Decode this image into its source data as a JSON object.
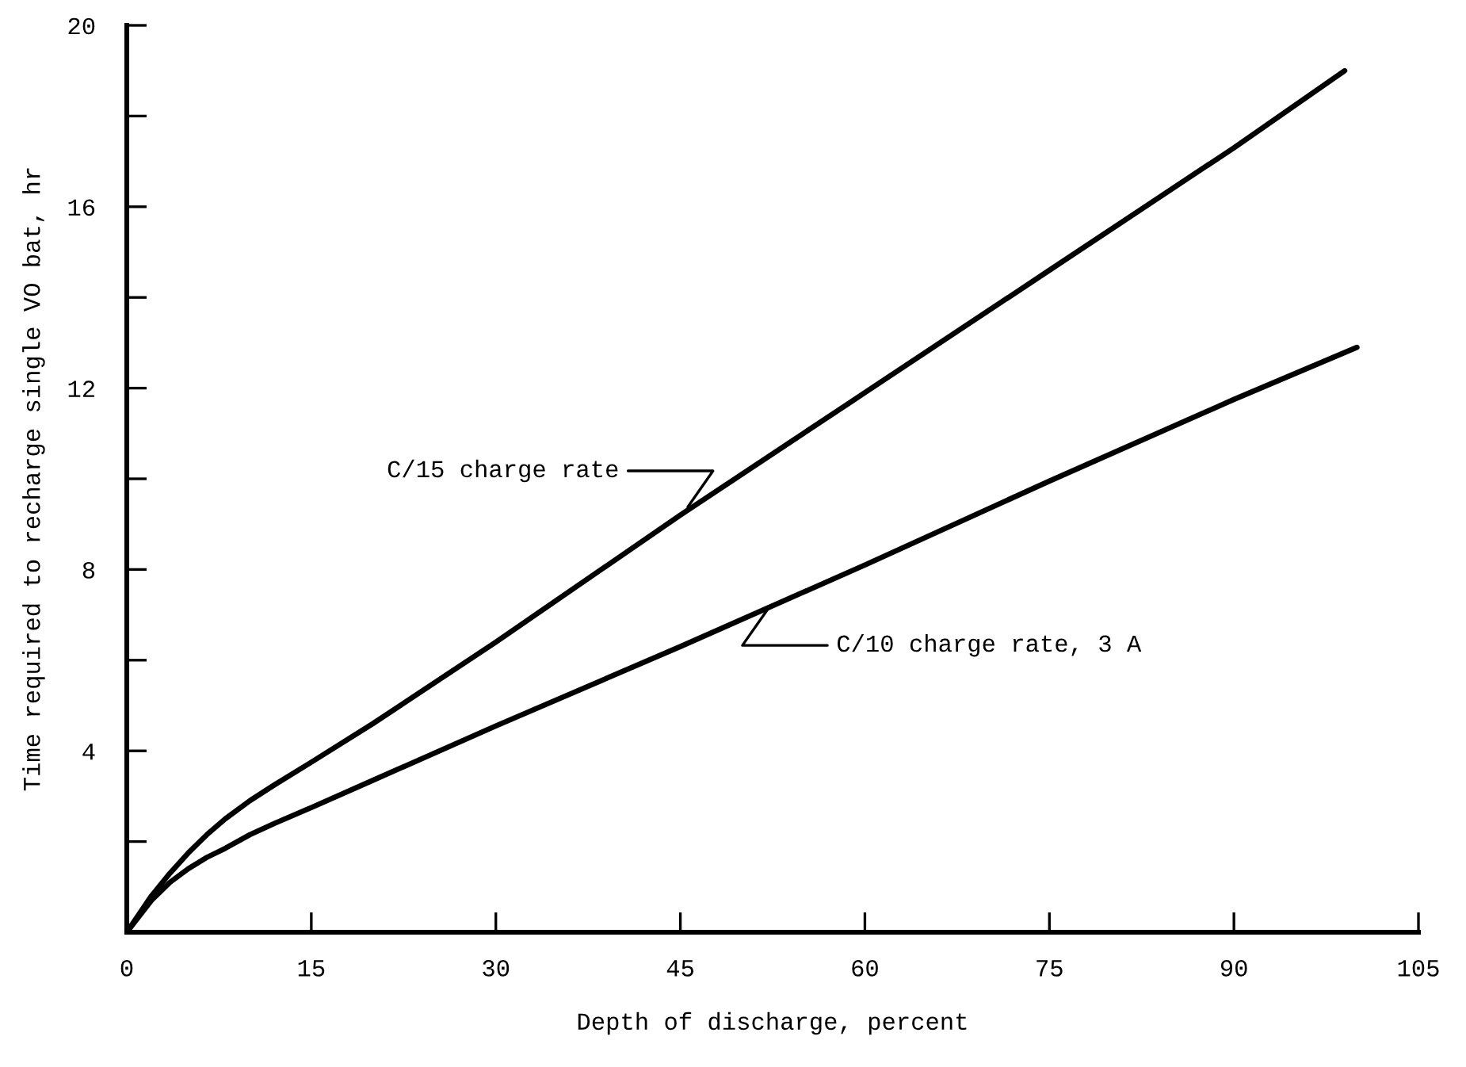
{
  "chart_data": {
    "type": "line",
    "xlabel": "Depth of discharge, percent",
    "ylabel": "Time required to recharge single VO bat, hr",
    "xlim": [
      0,
      105
    ],
    "xticks": [
      0,
      15,
      30,
      45,
      60,
      75,
      90,
      105
    ],
    "ylim": [
      0,
      20
    ],
    "yticks": [
      {
        "value": 0,
        "label": null
      },
      {
        "value": 2,
        "label": null
      },
      4,
      {
        "value": 6,
        "label": null
      },
      8,
      {
        "value": 10,
        "label": null
      },
      12,
      {
        "value": 14,
        "label": null
      },
      16,
      {
        "value": 18,
        "label": null
      },
      20
    ],
    "grid": false,
    "legend": false,
    "marker": "none",
    "line_style": "solid",
    "series": [
      {
        "color": "#000000",
        "x": [
          0,
          1,
          2,
          3.5,
          5,
          6.5,
          8,
          10,
          12,
          15,
          20,
          30,
          45,
          60,
          75,
          90,
          99
        ],
        "values": [
          0,
          0.4,
          0.8,
          1.3,
          1.75,
          2.15,
          2.5,
          2.9,
          3.25,
          3.75,
          4.6,
          6.4,
          9.2,
          11.9,
          14.6,
          17.3,
          19.0
        ]
      },
      {
        "color": "#000000",
        "x": [
          0,
          1,
          2,
          3.5,
          5,
          6.5,
          8,
          10,
          12,
          15,
          20,
          30,
          45,
          60,
          75,
          90,
          100
        ],
        "values": [
          0,
          0.35,
          0.7,
          1.1,
          1.4,
          1.65,
          1.85,
          2.15,
          2.4,
          2.75,
          3.35,
          4.55,
          6.3,
          8.1,
          9.95,
          11.75,
          12.9
        ]
      }
    ],
    "annotations": [
      {
        "text": "C/15 charge rate",
        "x": 45.4,
        "y": 9.3
      },
      {
        "text": "C/10 charge rate, 3 A",
        "x": 52.3,
        "y": 7.2
      }
    ]
  }
}
